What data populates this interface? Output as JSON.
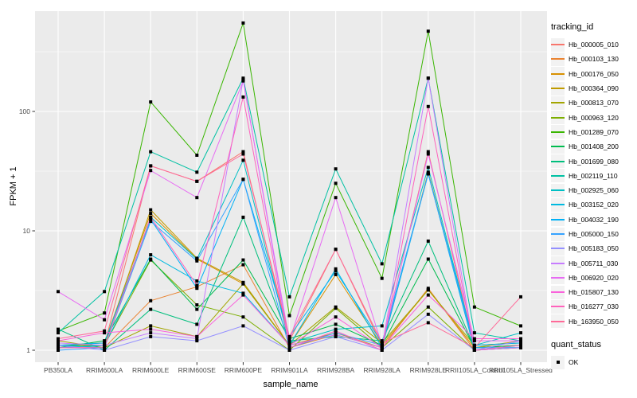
{
  "y_axis_title": "FPKM + 1",
  "x_axis_title": "sample_name",
  "chart_data": {
    "type": "line",
    "title": "",
    "xlabel": "sample_name",
    "ylabel": "FPKM + 1",
    "y_scale": "log10",
    "ylim": [
      0.9,
      690
    ],
    "grid": true,
    "legend_position": "right",
    "y_tick_labels": [
      "1",
      "10",
      "100"
    ],
    "y_tick_values": [
      1,
      10,
      100
    ],
    "categories": [
      "PB350LA",
      "RRIM600LA",
      "RRIM600LE",
      "RRIM600SE",
      "RRIM600PE",
      "RRIM901LA",
      "RRIM928BA",
      "RRIM928LA",
      "RRIM928LE",
      "RRII105LA_Control",
      "RRII105LA_Stressed"
    ],
    "legend": {
      "color_title": "tracking_id",
      "shape_title": "quant_status",
      "shape_entries": [
        "OK"
      ]
    },
    "series": [
      {
        "name": "Hb_000005_010",
        "color": "#F8766D",
        "values": [
          1.1,
          1.1,
          35,
          26,
          46,
          1.2,
          7.0,
          1.1,
          46,
          1.05,
          1.1
        ]
      },
      {
        "name": "Hb_000103_130",
        "color": "#EA8331",
        "values": [
          1.05,
          1.05,
          2.6,
          3.4,
          5.2,
          1.05,
          1.35,
          1.05,
          3.3,
          1.0,
          1.05
        ]
      },
      {
        "name": "Hb_000176_050",
        "color": "#D89000",
        "values": [
          1.1,
          1.15,
          14,
          5.8,
          3.6,
          1.1,
          4.3,
          1.1,
          3.2,
          1.05,
          1.1
        ]
      },
      {
        "name": "Hb_000364_090",
        "color": "#C09B00",
        "values": [
          1.05,
          1.1,
          15,
          5.9,
          3.7,
          1.1,
          1.4,
          1.05,
          31,
          1.05,
          1.2
        ]
      },
      {
        "name": "Hb_000813_070",
        "color": "#A3A500",
        "values": [
          1.2,
          1.05,
          1.6,
          1.3,
          3.6,
          1.1,
          2.3,
          1.15,
          3.2,
          1.1,
          1.15
        ]
      },
      {
        "name": "Hb_000963_120",
        "color": "#7CAE00",
        "values": [
          1.1,
          1.1,
          5.7,
          2.4,
          1.9,
          1.0,
          2.25,
          1.05,
          2.3,
          1.0,
          1.05
        ]
      },
      {
        "name": "Hb_001289_070",
        "color": "#39B600",
        "values": [
          1.45,
          2.05,
          120,
          43,
          550,
          1.95,
          25,
          4.0,
          470,
          2.3,
          1.6
        ]
      },
      {
        "name": "Hb_001408_200",
        "color": "#00BB4E",
        "values": [
          1.05,
          1.2,
          5.8,
          2.2,
          5.7,
          1.25,
          1.65,
          1.1,
          5.8,
          1.05,
          1.1
        ]
      },
      {
        "name": "Hb_001699_080",
        "color": "#00BF7D",
        "values": [
          1.5,
          1.0,
          2.2,
          1.65,
          13,
          1.2,
          1.3,
          1.2,
          8.2,
          1.05,
          1.05
        ]
      },
      {
        "name": "Hb_002119_110",
        "color": "#00C1A3",
        "values": [
          1.4,
          3.1,
          46,
          31,
          190,
          2.8,
          33,
          5.3,
          190,
          1.4,
          1.2
        ]
      },
      {
        "name": "Hb_002925_060",
        "color": "#00BFC4",
        "values": [
          1.1,
          1.05,
          13,
          5.8,
          39,
          1.15,
          1.5,
          1.6,
          34,
          1.1,
          1.4
        ]
      },
      {
        "name": "Hb_003152_020",
        "color": "#00BAE0",
        "values": [
          1.05,
          1.1,
          6.3,
          3.8,
          3.0,
          1.1,
          4.8,
          1.05,
          30,
          1.0,
          1.1
        ]
      },
      {
        "name": "Hb_004032_190",
        "color": "#00B0F6",
        "values": [
          1.1,
          1.15,
          12.5,
          3.3,
          27,
          1.3,
          4.6,
          1.15,
          30,
          1.1,
          1.15
        ]
      },
      {
        "name": "Hb_005000_150",
        "color": "#35A2FF",
        "values": [
          1.0,
          1.05,
          12,
          5.6,
          27,
          1.05,
          1.4,
          1.1,
          30,
          1.05,
          1.05
        ]
      },
      {
        "name": "Hb_005183_050",
        "color": "#9590FF",
        "values": [
          1.1,
          1.0,
          1.3,
          1.2,
          1.6,
          1.0,
          1.3,
          1.0,
          2.0,
          1.0,
          1.2
        ]
      },
      {
        "name": "Hb_005711_030",
        "color": "#C77CFF",
        "values": [
          1.15,
          1.1,
          1.4,
          1.25,
          185,
          1.1,
          1.35,
          1.05,
          190,
          1.0,
          1.05
        ]
      },
      {
        "name": "Hb_006920_020",
        "color": "#E76BF3",
        "values": [
          3.1,
          1.8,
          32,
          19,
          180,
          1.2,
          19,
          1.1,
          44,
          1.2,
          1.2
        ]
      },
      {
        "name": "Hb_015807_130",
        "color": "#FA62DB",
        "values": [
          1.2,
          1.4,
          1.5,
          1.3,
          2.9,
          1.1,
          1.9,
          1.05,
          2.9,
          1.25,
          1.25
        ]
      },
      {
        "name": "Hb_016277_030",
        "color": "#FF62BC",
        "values": [
          1.05,
          1.05,
          13,
          3.5,
          132,
          1.05,
          1.45,
          1.0,
          110,
          1.0,
          1.1
        ]
      },
      {
        "name": "Hb_163950_050",
        "color": "#FF6A98",
        "values": [
          1.25,
          1.45,
          35,
          26,
          44,
          1.3,
          7.0,
          1.15,
          1.7,
          1.05,
          2.8
        ]
      }
    ],
    "style": {
      "panel_bg": "#EBEBEB",
      "grid_color": "#FFFFFF",
      "tick_color": "#333333",
      "tick_label_color": "#4D4D4D",
      "point_color": "#000000"
    }
  }
}
